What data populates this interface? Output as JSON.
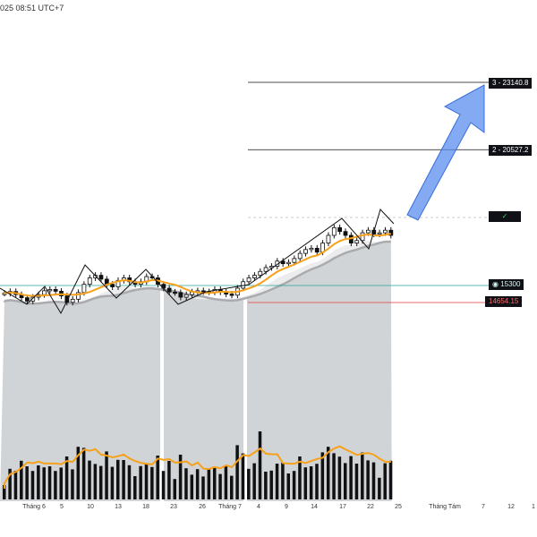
{
  "header": {
    "timestamp": "025 08:51 UTC+7"
  },
  "chart_data": {
    "type": "candlestick",
    "xlabel": "",
    "ylabel": "",
    "x_ticks": [
      "Tháng 6",
      "5",
      "10",
      "13",
      "18",
      "23",
      "26",
      "Tháng 7",
      "4",
      "9",
      "14",
      "17",
      "22",
      "25",
      "Tháng Tám",
      "7",
      "12",
      "1"
    ],
    "price_levels": [
      {
        "name": "target-3",
        "label": "3 - 23140.8",
        "value": 23140.8
      },
      {
        "name": "target-2",
        "label": "2 - 20527.2",
        "value": 20527.2
      },
      {
        "name": "target-1",
        "label": "✓",
        "value": 18200
      },
      {
        "name": "support",
        "label": "15300",
        "value": 15300
      },
      {
        "name": "stop",
        "label": "14654.15",
        "value": 14654.15
      }
    ],
    "closes": [
      14950,
      15020,
      14900,
      14780,
      14650,
      14800,
      14900,
      15050,
      15100,
      15030,
      14850,
      14600,
      14720,
      14980,
      15300,
      15550,
      15650,
      15500,
      15300,
      15200,
      15450,
      15550,
      15400,
      15300,
      15400,
      15600,
      15550,
      15300,
      15150,
      15000,
      14980,
      14800,
      14900,
      15000,
      15050,
      15010,
      15000,
      15100,
      15000,
      14920,
      14880,
      15150,
      15400,
      15550,
      15650,
      15800,
      15950,
      16000,
      16200,
      16100,
      16150,
      16300,
      16500,
      16650,
      16700,
      16550,
      16900,
      17200,
      17500,
      17350,
      17200,
      16900,
      17000,
      17300,
      17400,
      17250,
      17300,
      17400,
      17200
    ]
  },
  "icons": {
    "arrow": "target-arrow-icon",
    "check": "check-icon",
    "support": "circle-dot-icon"
  },
  "colors": {
    "ma": "#f7a11a",
    "arrow": "#5b8def",
    "support": "#26a69a",
    "stop": "#e53935",
    "shade": "#d1d4d7"
  }
}
